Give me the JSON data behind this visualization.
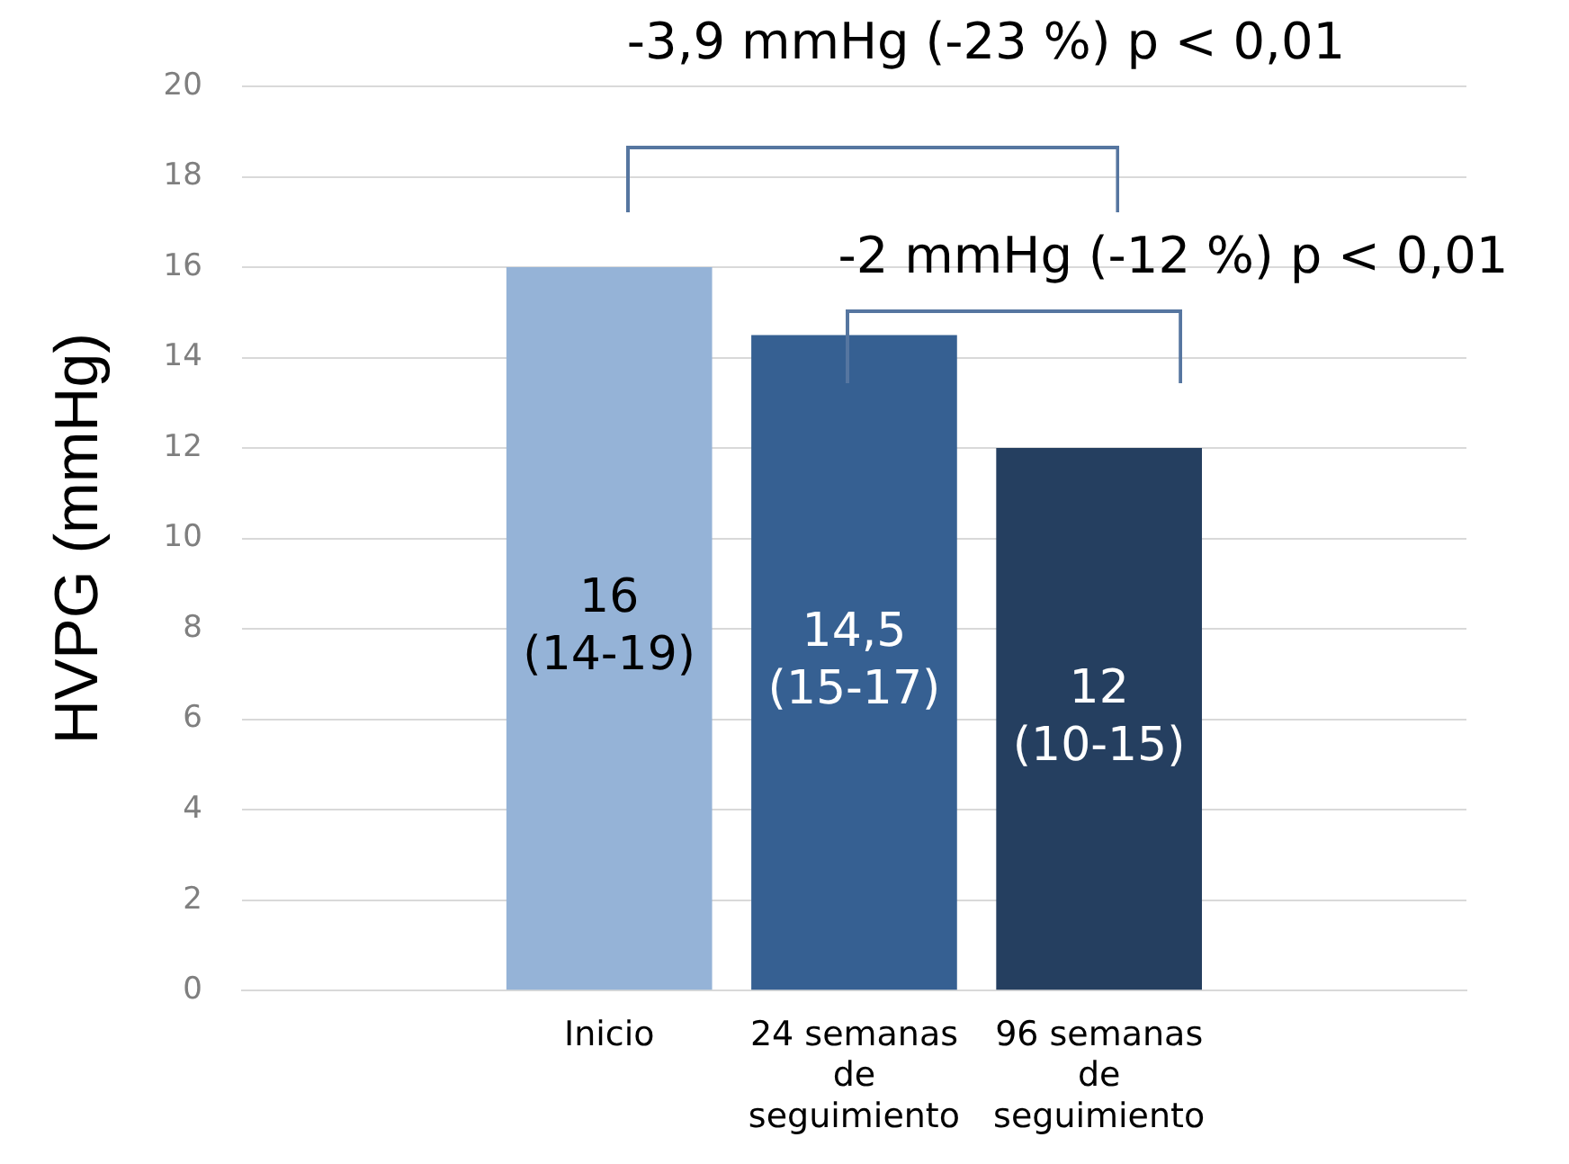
{
  "chart_data": {
    "type": "bar",
    "ylabel": "HVPG (mmHg)",
    "categories": [
      null,
      "Inicio",
      "24 semanas de seguimiento",
      "96 semanas de seguimiento",
      null
    ],
    "values": [
      null,
      16,
      14.5,
      12,
      null
    ],
    "colors": [
      "#95b3d7",
      "#95b3d7",
      "#366092",
      "#253f60",
      "#253f60"
    ],
    "value_labels": [
      null,
      "16\n(14-19)",
      "14,5\n(15-17)",
      "12\n(10-15)",
      null
    ],
    "ylim": [
      0,
      20
    ],
    "yticks": [
      0,
      2,
      4,
      6,
      8,
      10,
      12,
      14,
      16,
      18,
      20
    ],
    "grid": "y",
    "annotations": [
      "-3,9 mmHg (-23 %) p < 0,01",
      "-2 mmHg (-12 %) p < 0,01"
    ]
  }
}
